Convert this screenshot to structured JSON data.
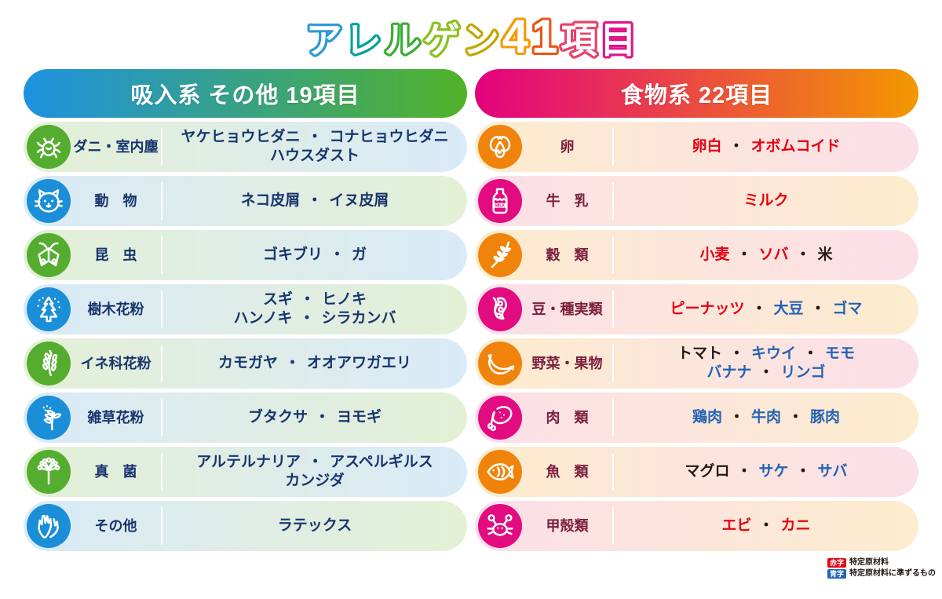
{
  "title": {
    "text": "アレルゲン41項目",
    "chars": [
      {
        "ch": "ア",
        "color": "#2b9ad6",
        "big": false
      },
      {
        "ch": "レ",
        "color": "#00a29a",
        "big": false
      },
      {
        "ch": "ル",
        "color": "#3aab33",
        "big": false
      },
      {
        "ch": "ゲ",
        "color": "#8bbf1e",
        "big": false
      },
      {
        "ch": "ン",
        "color": "#bfa700",
        "big": false
      },
      {
        "ch": "4",
        "color": "#f59a00",
        "big": true
      },
      {
        "ch": "1",
        "color": "#ea5514",
        "big": true
      },
      {
        "ch": "項",
        "color": "#e8416b",
        "big": false
      },
      {
        "ch": "目",
        "color": "#e0138b",
        "big": false
      }
    ]
  },
  "colors": {
    "navy": "#18356e",
    "red": "#e60012",
    "blue": "#2263b4",
    "black": "#231815",
    "maroon": "#7b1e3e"
  },
  "columns": [
    {
      "id": "inhalant",
      "header": "吸入系 その他 19項目",
      "header_gradient": [
        "#1e92e0",
        "#52b228"
      ],
      "label_color": "#18356e",
      "separator_color": "#18356e",
      "row_colors": [
        "#e4f0d5",
        "#d9eaf8"
      ],
      "icon_colors": [
        "#54ad2f",
        "#1b8ed8"
      ],
      "rows": [
        {
          "name": "mites-house-dust",
          "icon": "mite-icon",
          "label": "ダニ・室内塵",
          "lines": [
            [
              {
                "t": "ヤケヒョウヒダニ",
                "c": "navy"
              },
              {
                "t": "コナヒョウヒダニ",
                "c": "navy"
              }
            ],
            [
              {
                "t": "ハウスダスト",
                "c": "navy"
              }
            ]
          ]
        },
        {
          "name": "animals",
          "icon": "cat-icon",
          "label": "動　物",
          "lines": [
            [
              {
                "t": "ネコ皮屑",
                "c": "navy"
              },
              {
                "t": "イヌ皮屑",
                "c": "navy"
              }
            ]
          ]
        },
        {
          "name": "insects",
          "icon": "moth-icon",
          "label": "昆　虫",
          "lines": [
            [
              {
                "t": "ゴキブリ",
                "c": "navy"
              },
              {
                "t": "ガ",
                "c": "navy"
              }
            ]
          ]
        },
        {
          "name": "tree-pollen",
          "icon": "tree-icon",
          "label": "樹木花粉",
          "lines": [
            [
              {
                "t": "スギ",
                "c": "navy"
              },
              {
                "t": "ヒノキ",
                "c": "navy"
              }
            ],
            [
              {
                "t": "ハンノキ",
                "c": "navy"
              },
              {
                "t": "シラカンバ",
                "c": "navy"
              }
            ]
          ]
        },
        {
          "name": "grass-pollen",
          "icon": "rice-icon",
          "label": "イネ科花粉",
          "lines": [
            [
              {
                "t": "カモガヤ",
                "c": "navy"
              },
              {
                "t": "オオアワガエリ",
                "c": "navy"
              }
            ]
          ]
        },
        {
          "name": "weed-pollen",
          "icon": "weed-icon",
          "label": "雑草花粉",
          "lines": [
            [
              {
                "t": "ブタクサ",
                "c": "navy"
              },
              {
                "t": "ヨモギ",
                "c": "navy"
              }
            ]
          ]
        },
        {
          "name": "fungi",
          "icon": "fungus-icon",
          "label": "真　菌",
          "lines": [
            [
              {
                "t": "アルテルナリア",
                "c": "navy"
              },
              {
                "t": "アスペルギルス",
                "c": "navy"
              }
            ],
            [
              {
                "t": "カンジダ",
                "c": "navy"
              }
            ]
          ]
        },
        {
          "name": "others",
          "icon": "gloves-icon",
          "label": "その他",
          "lines": [
            [
              {
                "t": "ラテックス",
                "c": "navy"
              }
            ]
          ]
        }
      ]
    },
    {
      "id": "food",
      "header": "食物系 22項目",
      "header_gradient": [
        "#e3017f",
        "#f39800"
      ],
      "label_color": "#7b1e3e",
      "separator_color": "#231815",
      "row_colors": [
        "#fdeccd",
        "#fbdfe9"
      ],
      "icon_colors": [
        "#f0830c",
        "#e30b80"
      ],
      "rows": [
        {
          "name": "egg",
          "icon": "egg-icon",
          "label": "卵",
          "lines": [
            [
              {
                "t": "卵白",
                "c": "red"
              },
              {
                "t": "オボムコイド",
                "c": "red"
              }
            ]
          ]
        },
        {
          "name": "milk",
          "icon": "milk-icon",
          "label": "牛　乳",
          "lines": [
            [
              {
                "t": "ミルク",
                "c": "red"
              }
            ]
          ]
        },
        {
          "name": "grains",
          "icon": "wheat-icon",
          "label": "穀　類",
          "lines": [
            [
              {
                "t": "小麦",
                "c": "red"
              },
              {
                "t": "ソバ",
                "c": "red"
              },
              {
                "t": "米",
                "c": "black"
              }
            ]
          ]
        },
        {
          "name": "beans-nuts",
          "icon": "soybean-icon",
          "label": "豆・種実類",
          "lines": [
            [
              {
                "t": "ピーナッツ",
                "c": "red"
              },
              {
                "t": "大豆",
                "c": "blue"
              },
              {
                "t": "ゴマ",
                "c": "blue"
              }
            ]
          ]
        },
        {
          "name": "vegetables-fruits",
          "icon": "banana-icon",
          "label": "野菜・果物",
          "lines": [
            [
              {
                "t": "トマト",
                "c": "black"
              },
              {
                "t": "キウイ",
                "c": "blue"
              },
              {
                "t": "モモ",
                "c": "blue"
              }
            ],
            [
              {
                "t": "バナナ",
                "c": "blue"
              },
              {
                "t": "リンゴ",
                "c": "blue"
              }
            ]
          ]
        },
        {
          "name": "meats",
          "icon": "meat-icon",
          "label": "肉　類",
          "lines": [
            [
              {
                "t": "鶏肉",
                "c": "blue"
              },
              {
                "t": "牛肉",
                "c": "blue"
              },
              {
                "t": "豚肉",
                "c": "blue"
              }
            ]
          ]
        },
        {
          "name": "fish",
          "icon": "fish-icon",
          "label": "魚　類",
          "lines": [
            [
              {
                "t": "マグロ",
                "c": "black"
              },
              {
                "t": "サケ",
                "c": "blue"
              },
              {
                "t": "サバ",
                "c": "blue"
              }
            ]
          ]
        },
        {
          "name": "crustaceans",
          "icon": "crab-icon",
          "label": "甲殻類",
          "lines": [
            [
              {
                "t": "エビ",
                "c": "red"
              },
              {
                "t": "カニ",
                "c": "red"
              }
            ]
          ]
        }
      ]
    }
  ],
  "item_separator": "・",
  "legend": [
    {
      "badge": "赤字",
      "color": "#e60012",
      "text": "特定原材料"
    },
    {
      "badge": "青字",
      "color": "#2263b4",
      "text": "特定原材料に準ずるもの"
    }
  ]
}
